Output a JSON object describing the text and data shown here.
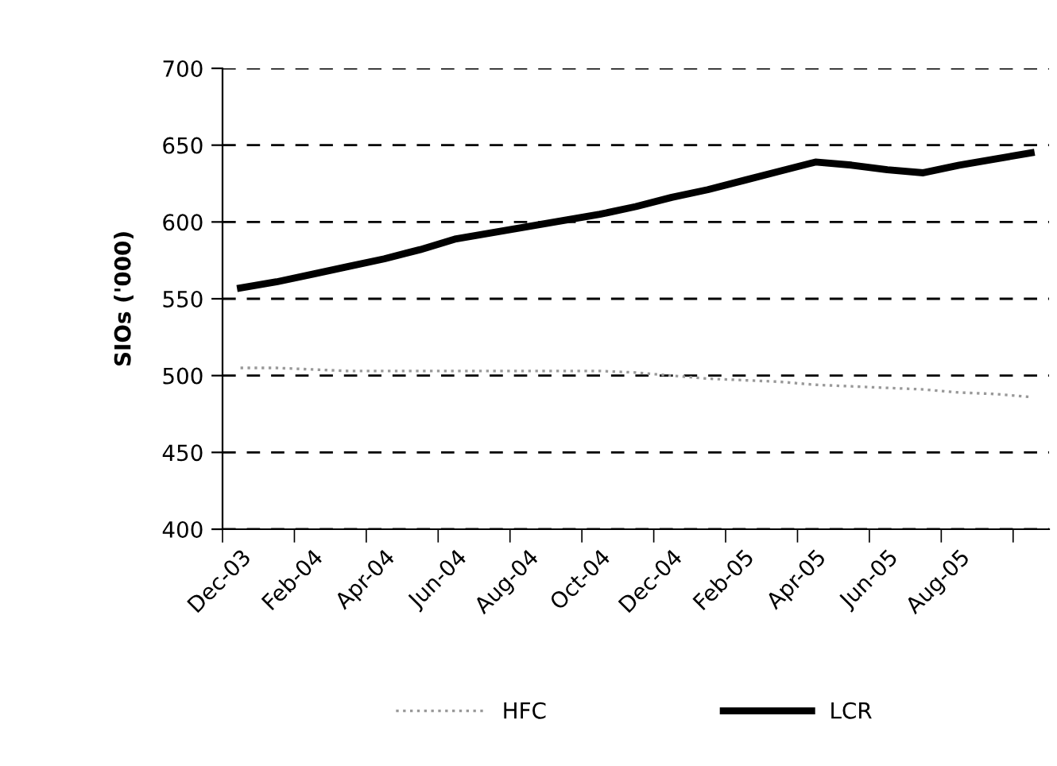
{
  "chart_data": {
    "type": "line",
    "ylabel": "SIOs ('000)",
    "categories": [
      "Dec-03",
      null,
      "Feb-04",
      null,
      "Apr-04",
      null,
      "Jun-04",
      null,
      "Aug-04",
      null,
      "Oct-04",
      null,
      "Dec-04",
      null,
      "Feb-05",
      null,
      "Apr-05",
      null,
      "Jun-05",
      null,
      "Aug-05",
      null,
      null
    ],
    "series": [
      {
        "name": "HFC",
        "color": "#999999",
        "line_style": "dotted",
        "values": [
          505,
          505,
          504,
          503,
          503,
          503,
          503,
          503,
          503,
          503,
          503,
          502,
          500,
          498,
          497,
          496,
          494,
          493,
          492,
          491,
          489,
          488,
          486
        ]
      },
      {
        "name": "LCR",
        "color": "#000000",
        "line_style": "solid",
        "values": [
          557,
          561,
          566,
          571,
          576,
          582,
          589,
          593,
          597,
          601,
          605,
          610,
          616,
          621,
          627,
          633,
          639,
          637,
          634,
          632,
          637,
          641,
          645
        ]
      }
    ],
    "ylim": [
      400,
      700
    ],
    "yticks": [
      400,
      450,
      500,
      550,
      600,
      650,
      700
    ],
    "grid": "y",
    "legend": "bottom",
    "marker": "none"
  }
}
